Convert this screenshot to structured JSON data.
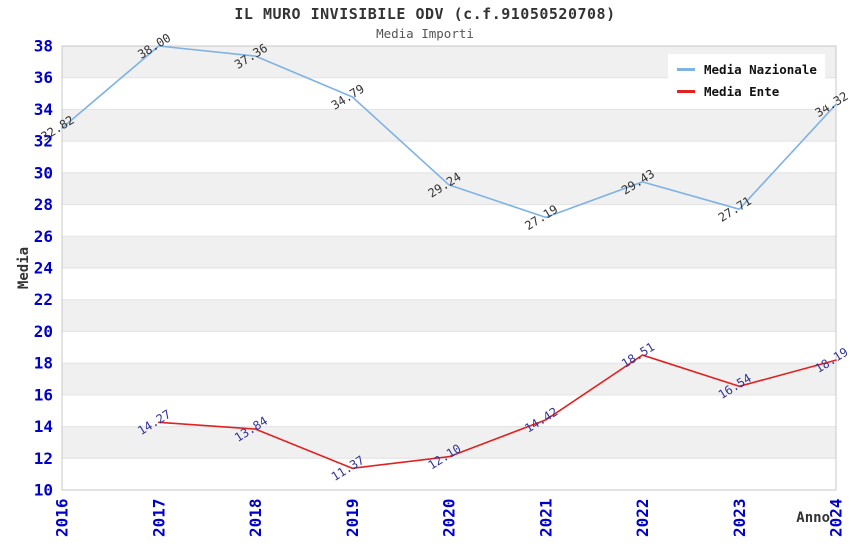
{
  "chart_data": {
    "type": "line",
    "title": "IL MURO INVISIBILE ODV (c.f.91050520708)",
    "subtitle": "Media Importi",
    "xlabel": "Anno",
    "ylabel": "Media",
    "x": [
      2016,
      2017,
      2018,
      2019,
      2020,
      2021,
      2022,
      2023,
      2024
    ],
    "ylim": [
      10,
      38
    ],
    "ytick_step": 2,
    "grid": "alternating-horizontal-bands",
    "legend_position": "top-right",
    "series": [
      {
        "name": "Media Nazionale",
        "color": "#7EB2E5",
        "label_color": "#333333",
        "x": [
          2016,
          2017,
          2018,
          2019,
          2020,
          2021,
          2022,
          2023,
          2024
        ],
        "values": [
          32.82,
          38.0,
          37.36,
          34.79,
          29.24,
          27.19,
          29.43,
          27.71,
          34.32
        ]
      },
      {
        "name": "Media Ente",
        "color": "#E02222",
        "label_color": "#333399",
        "x": [
          2017,
          2018,
          2019,
          2020,
          2021,
          2022,
          2023,
          2024
        ],
        "values": [
          14.27,
          13.84,
          11.37,
          12.1,
          14.42,
          18.51,
          16.54,
          18.19
        ]
      }
    ],
    "colors": {
      "band": "#f0f0f0",
      "grid": "#e2e2e2",
      "border": "#c9c9c9",
      "tick_label": "#0000cc",
      "axis_title": "#333333",
      "background": "#ffffff"
    }
  }
}
